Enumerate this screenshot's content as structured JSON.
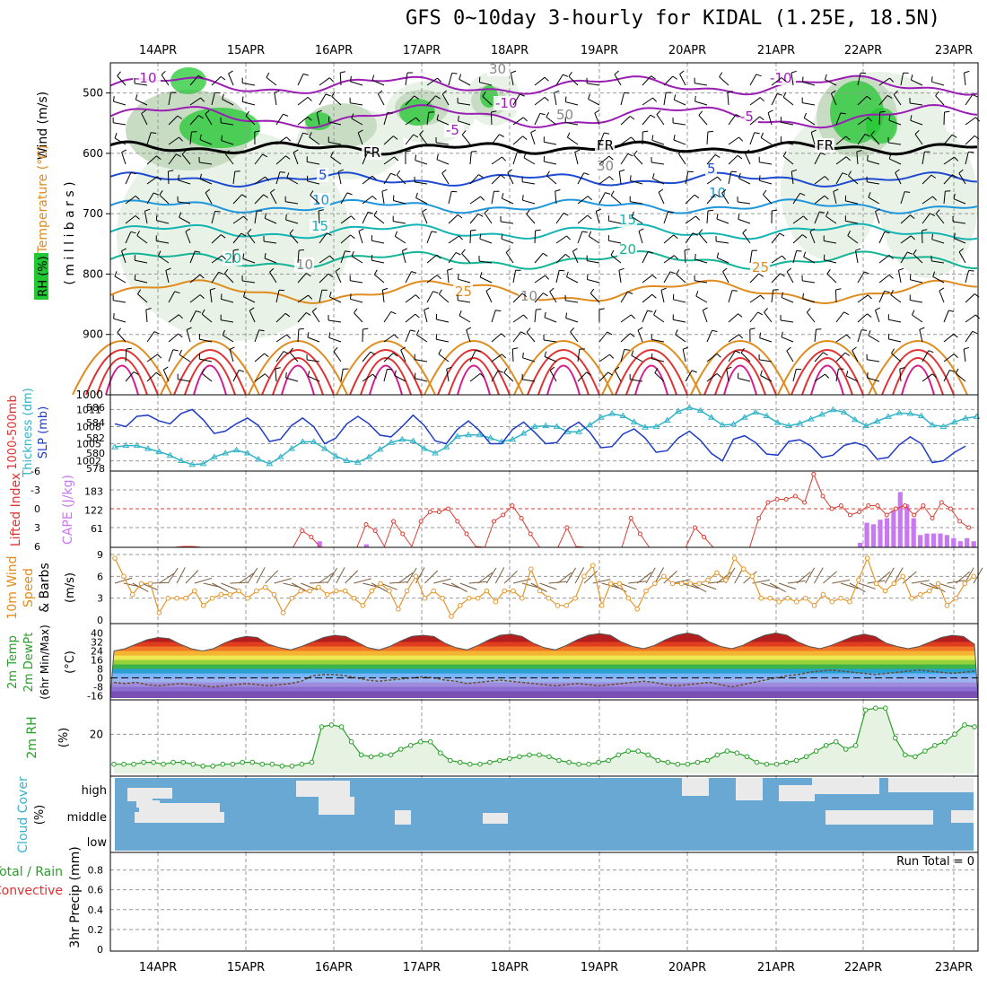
{
  "title": "GFS 0~10day 3-hourly for KIDAL (1.25E, 18.5N)",
  "dates": [
    "14APR",
    "15APR",
    "16APR",
    "17APR",
    "18APR",
    "19APR",
    "20APR",
    "21APR",
    "22APR",
    "23APR"
  ],
  "colors": {
    "rh_light": "#e8f2e6",
    "rh_mid": "#c8dcc4",
    "rh_dark": "#9fbd9a",
    "rh_bright": "#22c832",
    "temp_purple": "#9a1eb4",
    "temp_blue": "#1e4bd2",
    "temp_sky": "#1e96dc",
    "temp_cyan": "#14b4b4",
    "temp_teal": "#14b496",
    "temp_orange": "#e08c1e",
    "temp_red": "#e03232",
    "temp_magenta": "#d21e8c",
    "slp": "#1e3cc8",
    "thickness": "#32b4c8",
    "lifted": "#dc3c32",
    "cape": "#c878f0",
    "wind": "#e69628",
    "rh2m": "#28a028",
    "cloud_blue": "#6aa8d4",
    "cloud_white": "#eaeaea",
    "barb": "#000000"
  },
  "panels": {
    "upper": {
      "labels": {
        "wind": "Wind (m/s)",
        "temp": "Temperature (°C)",
        "rh": "RH (%)",
        "units": "( m i l l i b a r s )"
      },
      "yticks": [
        "500",
        "600",
        "700",
        "800",
        "900",
        "1000"
      ],
      "contour_labels": {
        "fr": "FR",
        "m10": "-10",
        "m5": "-5",
        "p5": "5",
        "p10": "10",
        "p15": "15",
        "p20": "20",
        "p25": "25",
        "rh10": "10",
        "rh30": "30",
        "rh50": "50"
      }
    },
    "slp": {
      "labels": {
        "thick1": "1000-500mb",
        "thick2": "Thickness (dm)",
        "slp": "SLP (mb)"
      },
      "yticks_left": [
        "586",
        "584",
        "582",
        "580",
        "578"
      ],
      "yticks_right": [
        "1011",
        "1008",
        "1005",
        "1002"
      ]
    },
    "li": {
      "labels": {
        "li": "Lifted Index",
        "cape": "CAPE (J/kg)"
      },
      "yticks_left": [
        "-6",
        "-3",
        "0",
        "3",
        "6"
      ],
      "yticks_right": [
        "183",
        "122",
        "61"
      ]
    },
    "wind10": {
      "labels": {
        "wind1": "10m Wind",
        "wind2": "Speed",
        "wind3": "& Barbs",
        "unit": "(m/s)"
      },
      "yticks": [
        "9",
        "6",
        "3",
        "0"
      ]
    },
    "temp2m": {
      "labels": {
        "l1": "2m Temp",
        "l2": "2m DewPt",
        "l3": "(6hr Min/Max)",
        "unit": "(°C)"
      },
      "yticks": [
        "40",
        "32",
        "24",
        "16",
        "8",
        "0",
        "-8",
        "-16"
      ]
    },
    "rh2m": {
      "labels": {
        "l1": "2m RH",
        "unit": "(%)"
      },
      "yticks": [
        "20"
      ]
    },
    "cloud": {
      "labels": {
        "l1": "Cloud Cover",
        "unit": "(%)",
        "high": "high",
        "middle": "middle",
        "low": "low"
      }
    },
    "precip": {
      "labels": {
        "l1": "Total / Rain",
        "l2": "Convective",
        "l3": "3hr Precip (mm)",
        "run_total": "Run Total = 0"
      },
      "yticks": [
        "0.8",
        "0.6",
        "0.4",
        "0.2",
        "0"
      ]
    }
  },
  "chart_data": {
    "type": "line",
    "time_axis_3hourly_start": "14APR 00Z",
    "slp_mb": [
      1008.5,
      1008,
      1009.8,
      1010,
      1009,
      1008.5,
      1010.3,
      1011,
      1009.2,
      1006.8,
      1007.2,
      1008.5,
      1009.5,
      1008.2,
      1005.4,
      1005.8,
      1008.2,
      1009.5,
      1008,
      1005,
      1006,
      1008.5,
      1009.8,
      1008.5,
      1006.5,
      1006.2,
      1008,
      1010,
      1008.2,
      1005.5,
      1005,
      1007.5,
      1009,
      1007.3,
      1005,
      1005,
      1007.5,
      1008.8,
      1007,
      1005,
      1005.2,
      1007.6,
      1008.8,
      1007,
      1004.3,
      1004.5,
      1006.7,
      1007.6,
      1006,
      1003.5,
      1003.8,
      1006,
      1007.2,
      1005.6,
      1003.3,
      1002,
      1005.8,
      1006.4,
      1005.2,
      1003.2,
      1003,
      1005.4,
      1005.7,
      1004.6,
      1002.6,
      1003,
      1004.7,
      1005.2,
      1004.6,
      1002.3,
      1002.6,
      1004.8,
      1006.2,
      1005,
      1001.7,
      1002,
      1003.5,
      1004.6
    ],
    "thickness_dm": [
      580.8,
      581,
      581,
      580.6,
      580.2,
      579.7,
      579,
      578.5,
      578.6,
      579.5,
      580,
      580.4,
      580,
      579.2,
      578.6,
      579.5,
      580.6,
      581.5,
      581.5,
      580.6,
      579.6,
      579,
      578.8,
      579.5,
      580.5,
      581.4,
      581.8,
      581.6,
      580.6,
      580,
      580.8,
      582.2,
      582.4,
      582.4,
      582,
      581.5,
      581.8,
      582.6,
      583.5,
      583.6,
      583.5,
      582.8,
      582.8,
      583.7,
      584.7,
      585.2,
      584.9,
      584.1,
      583.4,
      583.5,
      584.3,
      585.5,
      586,
      585.6,
      584.7,
      583.7,
      583.8,
      584.7,
      585.4,
      584.9,
      584,
      583.6,
      583.9,
      584.5,
      585.1,
      585.7,
      585.4,
      584.4,
      583.6,
      584.2,
      584.8,
      585.3,
      585.2,
      584.9,
      583.7,
      583.5,
      584.1,
      584.6,
      584.8
    ],
    "lifted_index": [
      6.5,
      6.5,
      6.5,
      6.5,
      6.5,
      6.5,
      6.5,
      6.5,
      6,
      6,
      6.5,
      6.5,
      6.5,
      6.5,
      6.5,
      6.5,
      6.5,
      6.5,
      6.5,
      6.5,
      6.5,
      3.5,
      4.5,
      6.5,
      6.5,
      6.5,
      6.5,
      6.5,
      2.5,
      3.5,
      6,
      2,
      4,
      6,
      2,
      0.5,
      0.5,
      0,
      2,
      4,
      6,
      6.5,
      2,
      1,
      -0.5,
      1.5,
      4,
      6.5,
      6.5,
      6.5,
      3,
      6,
      6.5,
      6.5,
      6.5,
      6.5,
      6.5,
      1.5,
      4,
      6.5,
      6.5,
      6.5,
      6.5,
      6.5,
      3,
      4.5,
      6.5,
      6.5,
      6.5,
      6.5,
      6.5,
      1.5,
      -1,
      -1.5,
      -1.5,
      -2,
      -1,
      -5.5,
      -2,
      0,
      -0.5,
      1,
      0.5,
      -0.5,
      -0.5,
      1,
      0,
      -0.5,
      1,
      -0.5,
      1.5,
      -1,
      0,
      2,
      3
    ],
    "cape_jkg": [
      0,
      0,
      0,
      0,
      0,
      0,
      0,
      0,
      0,
      0,
      0,
      0,
      0,
      0,
      0,
      0,
      0,
      0,
      0,
      0,
      0,
      0,
      0,
      0,
      0,
      0,
      0,
      0,
      0,
      0,
      0,
      20,
      0,
      0,
      0,
      0,
      0,
      0,
      10,
      0,
      0,
      0,
      0,
      0,
      0,
      0,
      0,
      0,
      0,
      0,
      0,
      0,
      0,
      0,
      0,
      0,
      0,
      0,
      0,
      0,
      0,
      0,
      0,
      0,
      0,
      0,
      0,
      0,
      0,
      0,
      0,
      0,
      0,
      0,
      0,
      0,
      0,
      0,
      0,
      0,
      0,
      0,
      0,
      0,
      0,
      0,
      0,
      0,
      0,
      0,
      0,
      0,
      0,
      0,
      0,
      0,
      0,
      0,
      0,
      0,
      0,
      0,
      0,
      0,
      0,
      0,
      0,
      0,
      0,
      0,
      0,
      0,
      15,
      80,
      75,
      90,
      95,
      120,
      180,
      140,
      95,
      40,
      45,
      45,
      45,
      40,
      30,
      20,
      30,
      20
    ],
    "wind10m_speed_ms": [
      8.5,
      6,
      3.5,
      5,
      5,
      1,
      3,
      3,
      3,
      4,
      2,
      3,
      3.5,
      3.5,
      4,
      3,
      4,
      4.5,
      3.5,
      1,
      3,
      4,
      4,
      4.5,
      3.5,
      4,
      4,
      3,
      2,
      4,
      5,
      4,
      1.5,
      4,
      6,
      3,
      4,
      3,
      0.5,
      2,
      3,
      3,
      4,
      2.5,
      4,
      4,
      3,
      7,
      4,
      3,
      2,
      2,
      3,
      6,
      7.5,
      2,
      5,
      5,
      3,
      1.5,
      4,
      5,
      6,
      5,
      5,
      5,
      5,
      5.5,
      6.5,
      5.5,
      8.5,
      7,
      6,
      3,
      3,
      2.5,
      3,
      2.5,
      3,
      2,
      3.5,
      2.5,
      3,
      2.5,
      5.5,
      8.5,
      5,
      4,
      5,
      6,
      3,
      3.5,
      4,
      5,
      2,
      3,
      5,
      6
    ],
    "temp2m_c": [
      24,
      26,
      30,
      34,
      36,
      35,
      30,
      26,
      24,
      26,
      31,
      35,
      37,
      36,
      30,
      27,
      25,
      28,
      32,
      36,
      38,
      37,
      32,
      27,
      25,
      28,
      33,
      37,
      38,
      37,
      31,
      27,
      25,
      29,
      34,
      38,
      39,
      37,
      31,
      27,
      25,
      29,
      34,
      38,
      39.5,
      38,
      32,
      28,
      26,
      29,
      34,
      38,
      40,
      38,
      32,
      28,
      26,
      29,
      34,
      38,
      40,
      38,
      32,
      28,
      26,
      29,
      33,
      37,
      39,
      37,
      31,
      28,
      26,
      28,
      32,
      36,
      38,
      37,
      30
    ],
    "dewpoint2m_c": [
      -4,
      -5,
      -4,
      -6,
      -7,
      -6,
      -5,
      -6,
      -7,
      -8,
      -7,
      -6,
      -5,
      -6,
      -7,
      -6,
      -5,
      -3,
      2,
      3,
      3,
      2,
      0,
      -2,
      -3,
      -2,
      -1,
      0,
      1,
      0,
      -2,
      -3,
      -5,
      -4,
      -3,
      -2,
      -3,
      -4,
      -5,
      -6,
      -7,
      -6,
      -5,
      -6,
      -7,
      -6,
      -5,
      -4,
      -3,
      -4,
      -6,
      -7,
      -6,
      -5,
      -4,
      -6,
      -8,
      -6,
      -4,
      -2,
      0,
      2,
      3,
      5,
      6,
      7,
      6,
      5,
      4,
      3,
      4,
      5,
      6,
      7,
      6,
      5,
      4,
      5,
      6
    ],
    "rh2m_pct": [
      4,
      4,
      4,
      5,
      5,
      4,
      5,
      5,
      4,
      3,
      3,
      4,
      4,
      5,
      5,
      4,
      4,
      3,
      3,
      4,
      5,
      24,
      25,
      24,
      16,
      9,
      8,
      9,
      9,
      12,
      14,
      16,
      16,
      10,
      6,
      5,
      4,
      4,
      5,
      6,
      7,
      8,
      9,
      9,
      8,
      6,
      5,
      4,
      4,
      5,
      6,
      9,
      11,
      11,
      9,
      6,
      5,
      4,
      4,
      5,
      6,
      9,
      11,
      10,
      8,
      5,
      4,
      4,
      5,
      6,
      8,
      11,
      14,
      16,
      12,
      14,
      33,
      34,
      34,
      18,
      9,
      8,
      11,
      14,
      16,
      20,
      25,
      24
    ],
    "cloud_total_note": "mostly overcast (blue) with clear gaps at high/middle levels",
    "precip_3hr_mm": [],
    "run_total_mm": 0,
    "ylim_precip": [
      0,
      0.9
    ],
    "grid": true
  }
}
